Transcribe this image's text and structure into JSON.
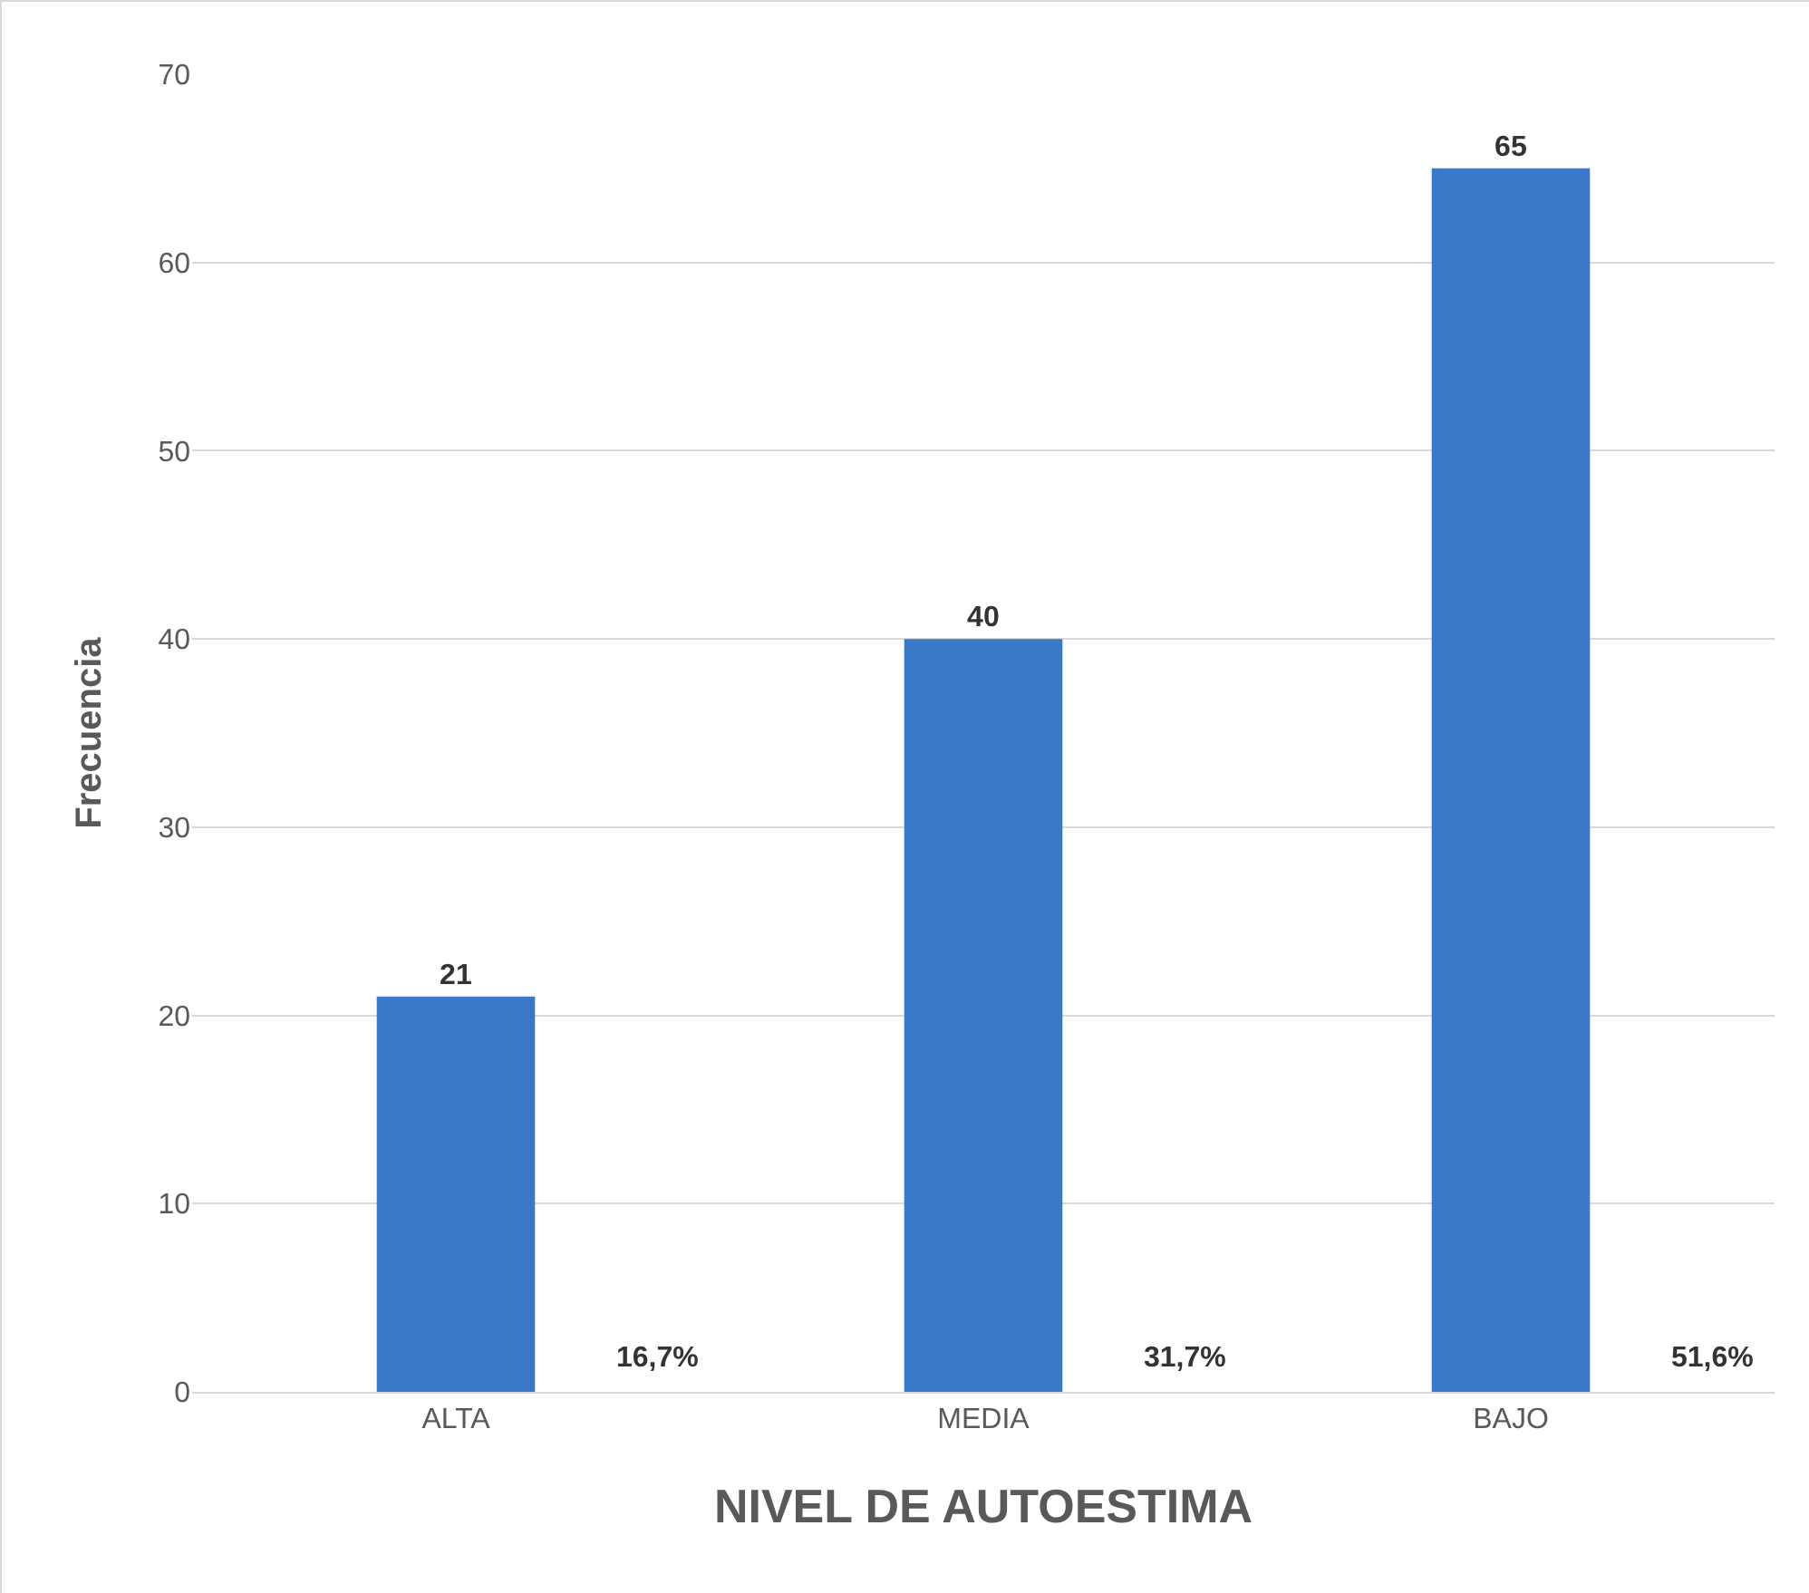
{
  "chart_data": {
    "type": "bar",
    "xlabel": "NIVEL DE AUTOESTIMA",
    "ylabel": "Frecuencia",
    "categories": [
      "ALTA",
      "MEDIA",
      "BAJO"
    ],
    "values": [
      21,
      40,
      65
    ],
    "color": "#3a78c8",
    "data_labels": true,
    "ylim": [
      0,
      70
    ],
    "yticks": [
      0,
      10,
      20,
      30,
      40,
      50,
      60,
      70
    ],
    "grid": "y",
    "legend": false,
    "annotations": [
      "16,7%",
      "31,7%",
      "51,6%"
    ]
  }
}
